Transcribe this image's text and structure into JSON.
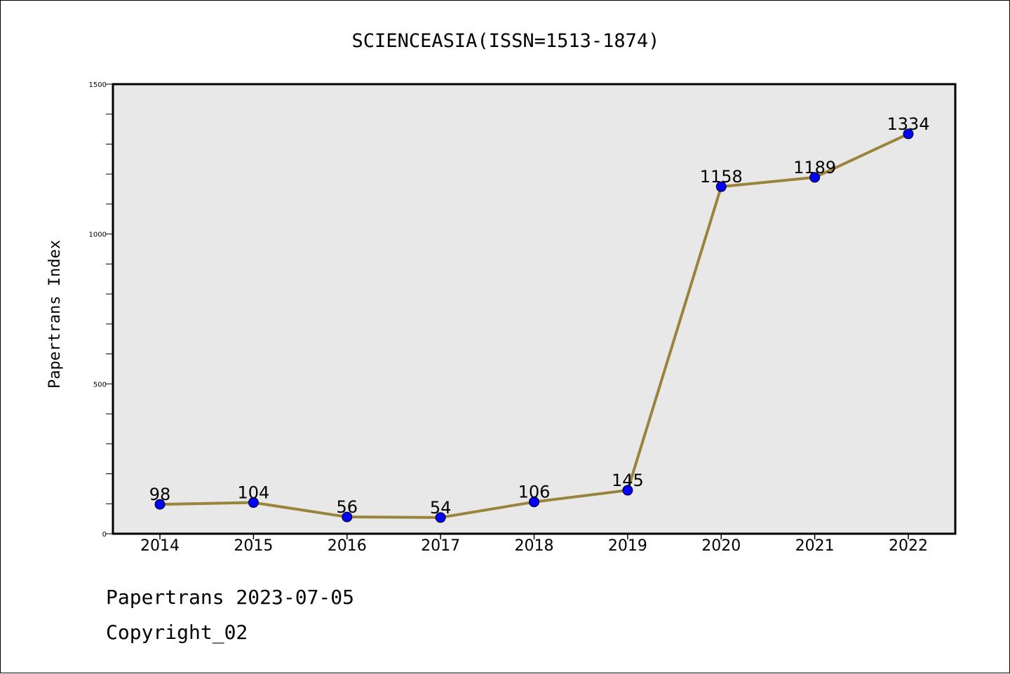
{
  "chart_data": {
    "type": "line",
    "title": "SCIENCEASIA(ISSN=1513-1874)",
    "xlabel": "",
    "ylabel": "Papertrans Index",
    "categories": [
      "2014",
      "2015",
      "2016",
      "2017",
      "2018",
      "2019",
      "2020",
      "2021",
      "2022"
    ],
    "values": [
      98,
      104,
      56,
      54,
      106,
      145,
      1158,
      1189,
      1334
    ],
    "ylim": [
      0,
      1500
    ],
    "yticks": [
      0,
      500,
      1000,
      1500
    ],
    "grid": false,
    "line_color": "#9a843c",
    "marker_color": "#0000ff",
    "plot_background": "#e8e8e8"
  },
  "footer": {
    "date_text": "Papertrans 2023-07-05",
    "copyright_text": "Copyright_02"
  }
}
